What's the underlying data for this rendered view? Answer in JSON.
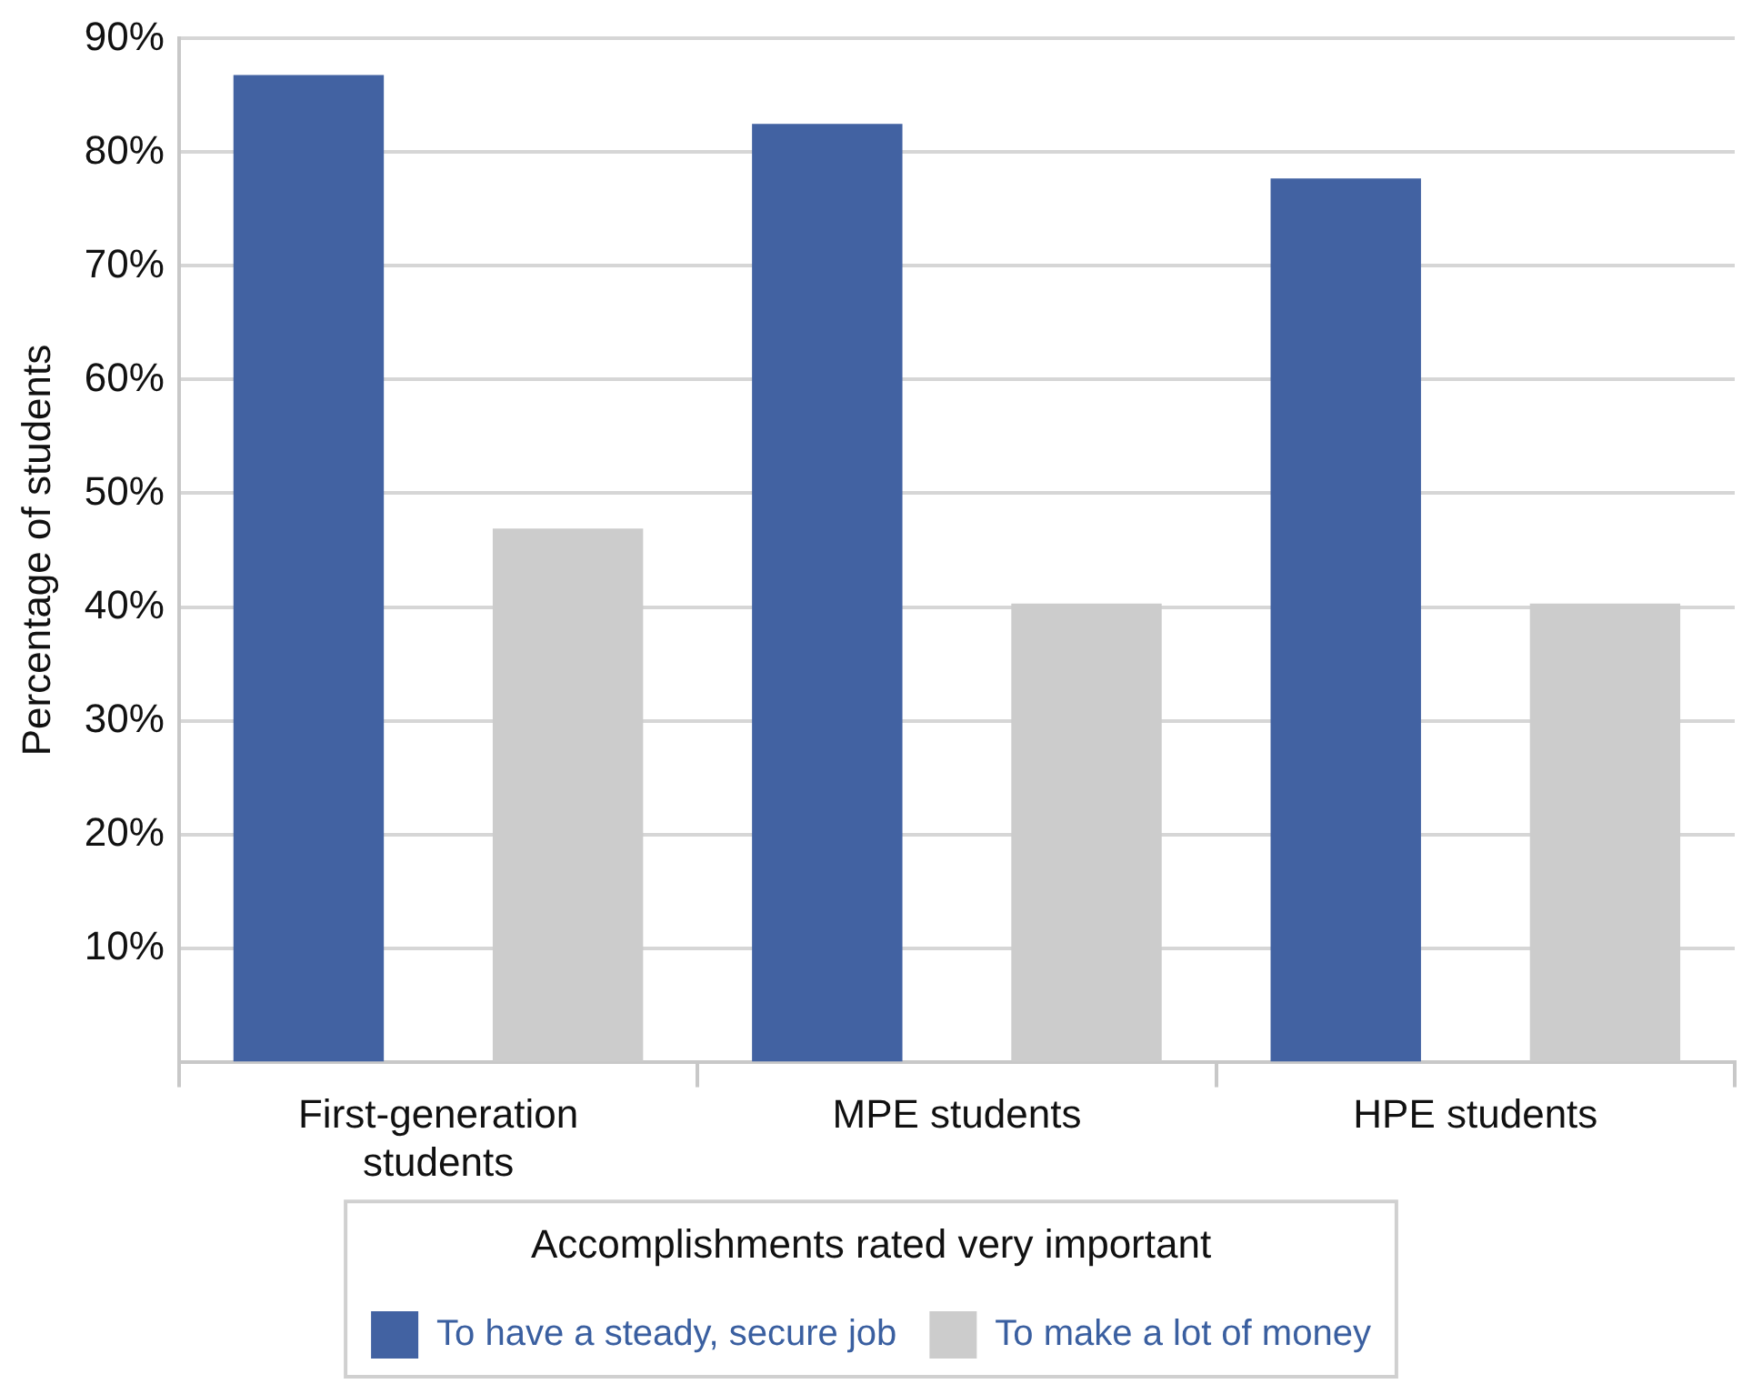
{
  "chart_data": {
    "type": "bar",
    "ylabel": "Percentage of students",
    "legend_title": "Accomplishments rated very important",
    "categories": [
      "First-generation students",
      "MPE students",
      "HPE students"
    ],
    "series": [
      {
        "name": "To have a steady, secure job",
        "color": "#4262a2",
        "values": [
          86.8,
          82.5,
          77.7
        ]
      },
      {
        "name": "To make a lot of money",
        "color": "#cccccc",
        "values": [
          46.9,
          40.3,
          40.3
        ]
      }
    ],
    "ylim": [
      0,
      90
    ],
    "yticks": [
      {
        "value": 10,
        "label": "10%"
      },
      {
        "value": 20,
        "label": "20%"
      },
      {
        "value": 30,
        "label": "30%"
      },
      {
        "value": 40,
        "label": "40%"
      },
      {
        "value": 50,
        "label": "50%"
      },
      {
        "value": 60,
        "label": "60%"
      },
      {
        "value": 70,
        "label": "70%"
      },
      {
        "value": 80,
        "label": "80%"
      },
      {
        "value": 90,
        "label": "90%"
      }
    ],
    "grid": "y",
    "legend": "bottom"
  }
}
